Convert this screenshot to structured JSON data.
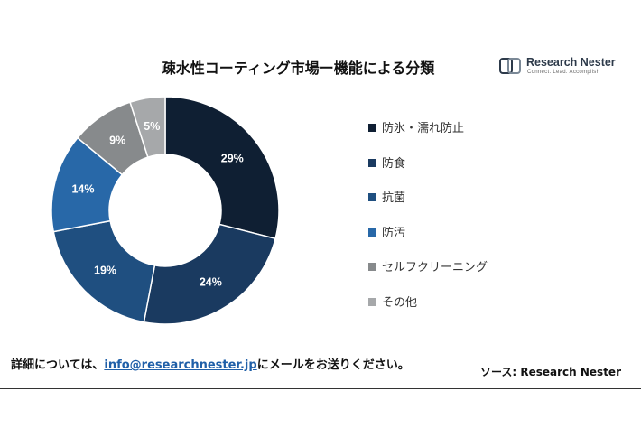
{
  "title": "疎水性コーティング市場ー機能による分類",
  "logo": {
    "brand": "Research Nester",
    "tagline": "Connect. Lead. Accomplish"
  },
  "chart_data": {
    "type": "pie",
    "variant": "donut",
    "title": "疎水性コーティング市場ー機能による分類",
    "categories": [
      "防氷・濡れ防止",
      "防食",
      "抗菌",
      "防汚",
      "セルフクリーニング",
      "その他"
    ],
    "values": [
      29,
      24,
      19,
      14,
      9,
      5
    ],
    "labels": [
      "29%",
      "24%",
      "19%",
      "14%",
      "9%",
      "5%"
    ],
    "colors": [
      "#0f1f33",
      "#1a3a60",
      "#1f4f80",
      "#2868a8",
      "#878a8c",
      "#a6a8aa"
    ],
    "legend_position": "right"
  },
  "footer": {
    "contact_prefix": "詳細については、",
    "email": "info@researchnester.jp",
    "contact_suffix": "にメールをお送りください。",
    "source": "ソース: Research Nester"
  }
}
